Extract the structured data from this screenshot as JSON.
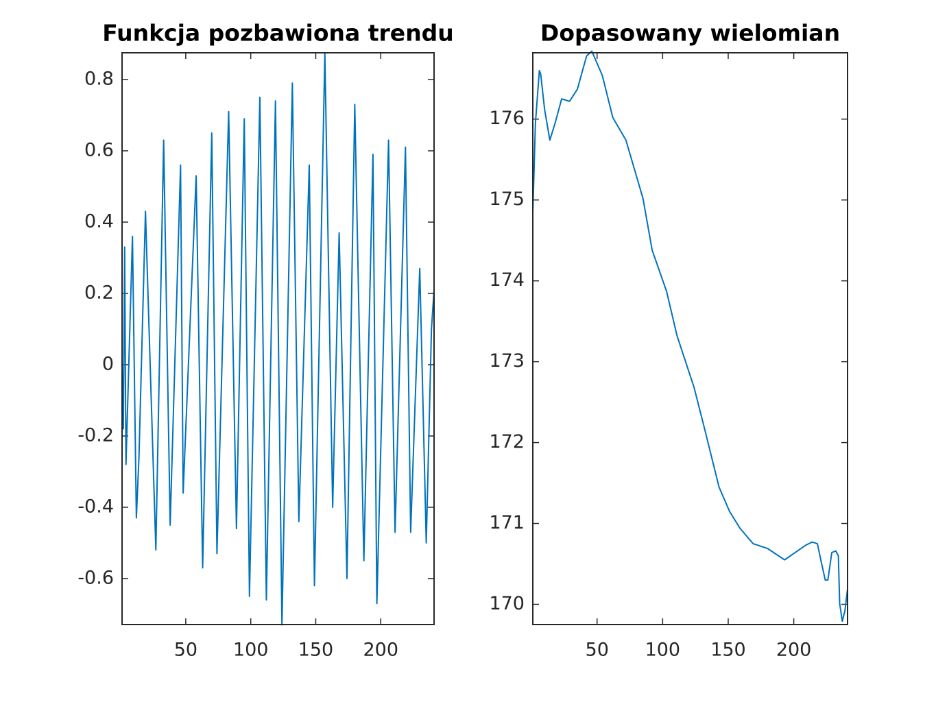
{
  "chart_data": [
    {
      "type": "line",
      "title": "Funkcja pozbawiona trendu",
      "x": [
        1,
        2,
        3,
        4,
        9,
        12,
        14,
        19,
        27,
        33,
        38,
        46,
        48,
        58,
        63,
        70,
        74,
        83,
        89,
        95,
        99,
        107,
        112,
        119,
        124,
        132,
        137,
        145,
        149,
        157,
        163,
        168,
        174,
        180,
        187,
        194,
        197,
        206,
        211,
        219,
        223,
        230,
        235,
        239,
        241
      ],
      "series": [
        {
          "color": "#0072bd",
          "values": [
            0,
            -0.18,
            0.33,
            -0.28,
            0.36,
            -0.43,
            -0.26,
            0.43,
            -0.52,
            0.63,
            -0.45,
            0.56,
            -0.36,
            0.53,
            -0.57,
            0.65,
            -0.53,
            0.71,
            -0.46,
            0.69,
            -0.65,
            0.75,
            -0.66,
            0.74,
            -0.73,
            0.79,
            -0.44,
            0.56,
            -0.62,
            0.875,
            -0.4,
            0.37,
            -0.6,
            0.73,
            -0.55,
            0.59,
            -0.67,
            0.63,
            -0.47,
            0.61,
            -0.47,
            0.27,
            -0.5,
            0.1,
            0.21
          ]
        }
      ],
      "xlim": [
        1,
        241
      ],
      "ylim": [
        -0.729,
        0.875
      ],
      "xticks": [
        50,
        100,
        150,
        200
      ],
      "yticks": [
        -0.6,
        -0.4,
        -0.2,
        0,
        0.2,
        0.4,
        0.6,
        0.8
      ]
    },
    {
      "type": "line",
      "title": "Dopasowany wielomian",
      "x": [
        1,
        3,
        6,
        7,
        10,
        14,
        18,
        23,
        29,
        35,
        42,
        46,
        54,
        62,
        72,
        85,
        92,
        103,
        111,
        124,
        132,
        143,
        151,
        159,
        169,
        180,
        193,
        201,
        209,
        214,
        218,
        221,
        224,
        226,
        229,
        232,
        234,
        235,
        237,
        239,
        241
      ],
      "series": [
        {
          "color": "#0072bd",
          "values": [
            174.83,
            175.95,
            176.6,
            176.56,
            176.12,
            175.74,
            175.95,
            176.25,
            176.22,
            176.37,
            176.78,
            176.84,
            176.54,
            176.02,
            175.74,
            175.02,
            174.38,
            173.87,
            173.32,
            172.68,
            172.17,
            171.45,
            171.15,
            170.94,
            170.75,
            170.69,
            170.55,
            170.64,
            170.73,
            170.77,
            170.75,
            170.52,
            170.3,
            170.3,
            170.64,
            170.66,
            170.6,
            170.01,
            169.79,
            169.92,
            170.19
          ]
        }
      ],
      "xlim": [
        1,
        241
      ],
      "ylim": [
        169.75,
        176.82
      ],
      "xticks": [
        50,
        100,
        150,
        200
      ],
      "yticks": [
        170,
        171,
        172,
        173,
        174,
        175,
        176
      ]
    }
  ]
}
